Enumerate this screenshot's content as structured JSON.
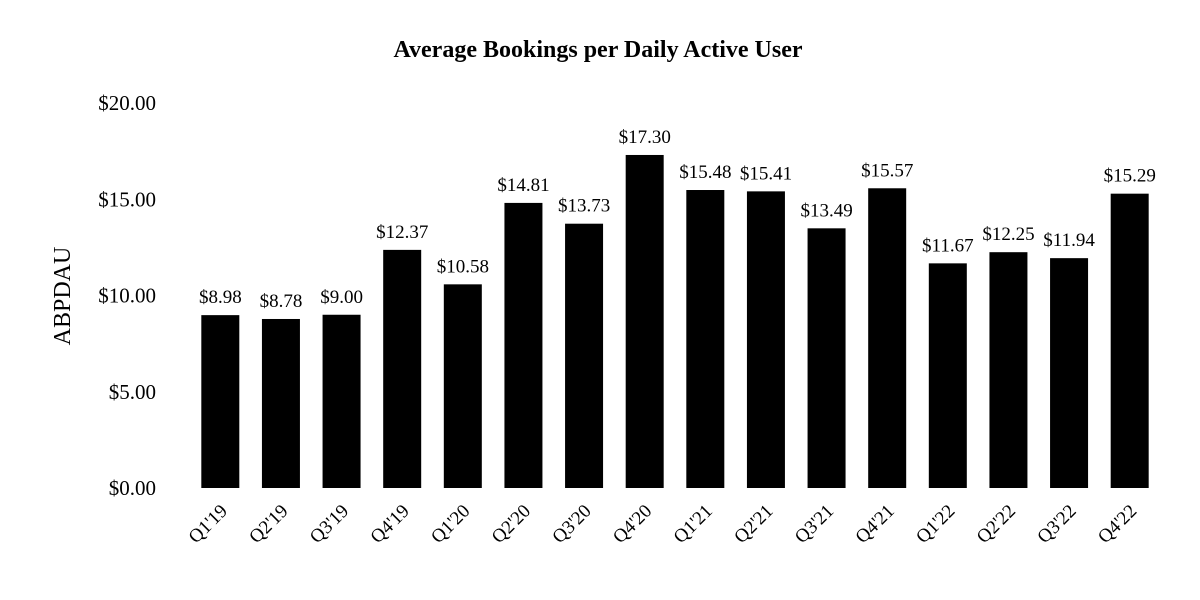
{
  "chart_data": {
    "type": "bar",
    "title": "Average Bookings per Daily Active User",
    "xlabel": "",
    "ylabel": "ABPDAU",
    "ylim": [
      0,
      20
    ],
    "yticks": [
      0,
      5,
      10,
      15,
      20
    ],
    "ytick_labels": [
      "$0.00",
      "$5.00",
      "$10.00",
      "$15.00",
      "$20.00"
    ],
    "grid": false,
    "legend": "none",
    "bar_color": "#000000",
    "categories": [
      "Q1'19",
      "Q2'19",
      "Q3'19",
      "Q4'19",
      "Q1'20",
      "Q2'20",
      "Q3'20",
      "Q4'20",
      "Q1'21",
      "Q2'21",
      "Q3'21",
      "Q4'21",
      "Q1'22",
      "Q2'22",
      "Q3'22",
      "Q4'22"
    ],
    "values": [
      8.98,
      8.78,
      9.0,
      12.37,
      10.58,
      14.81,
      13.73,
      17.3,
      15.48,
      15.41,
      13.49,
      15.57,
      11.67,
      12.25,
      11.94,
      15.29
    ],
    "data_labels": [
      "$8.98",
      "$8.78",
      "$9.00",
      "$12.37",
      "$10.58",
      "$14.81",
      "$13.73",
      "$17.30",
      "$15.48",
      "$15.41",
      "$13.49",
      "$15.57",
      "$11.67",
      "$12.25",
      "$11.94",
      "$15.29"
    ]
  }
}
